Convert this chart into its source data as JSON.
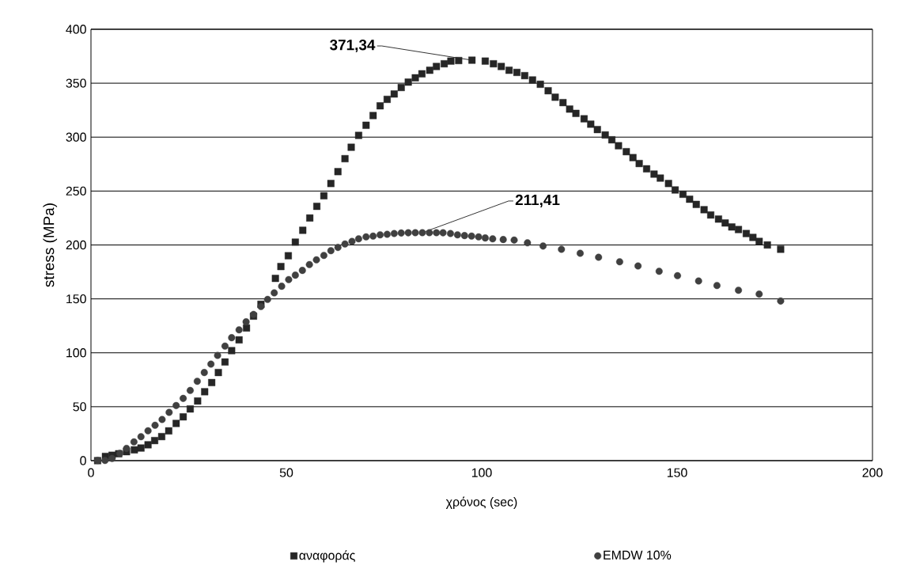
{
  "chart_data": {
    "type": "scatter",
    "xlabel": "χρόνος (sec)",
    "ylabel": "stress (MPa)",
    "xlim": [
      0,
      200
    ],
    "ylim": [
      0,
      400
    ],
    "xticks": [
      0,
      50,
      100,
      150,
      200
    ],
    "yticks": [
      0,
      50,
      100,
      150,
      200,
      250,
      300,
      350,
      400
    ],
    "grid": "y",
    "legend": "bottom",
    "series": [
      {
        "name": "αναφοράς",
        "color": "#262626",
        "marker": "square",
        "x": [
          1.7,
          3.7,
          5.4,
          7.1,
          9.1,
          11.1,
          12.8,
          14.6,
          16.3,
          18.1,
          19.9,
          21.8,
          23.6,
          25.4,
          27.3,
          29.1,
          30.9,
          32.6,
          34.3,
          36,
          37.9,
          39.8,
          41.6,
          43.5,
          47.2,
          48.6,
          50.5,
          52.3,
          54.2,
          56,
          57.8,
          59.6,
          61.4,
          63.2,
          65,
          66.6,
          68.5,
          70.4,
          72.2,
          74,
          75.8,
          77.6,
          79.4,
          81.2,
          83,
          84.7,
          86.7,
          88.4,
          90.4,
          92.1,
          94.1,
          97.5,
          100.9,
          103,
          105,
          107,
          109,
          111,
          113,
          115,
          117,
          118.8,
          120.8,
          122.5,
          124.1,
          126.2,
          127.9,
          129.6,
          131.6,
          133.3,
          135,
          137,
          138.7,
          140.3,
          142.2,
          144.1,
          145.7,
          147.8,
          149.5,
          151.5,
          153.2,
          154.9,
          156.9,
          158.6,
          160.6,
          162.3,
          164,
          165.7,
          167.7,
          169.4,
          171,
          173.1,
          176.5
        ],
        "values": [
          0,
          3.9,
          5,
          6.4,
          8.3,
          10,
          11.7,
          14.7,
          18.6,
          22.3,
          27.6,
          34.5,
          40.6,
          47.9,
          55.3,
          63.9,
          72.4,
          81.7,
          91.5,
          102,
          112,
          123,
          134,
          145,
          169,
          180,
          190,
          202.6,
          213.6,
          225,
          235.8,
          245.6,
          257,
          268,
          280,
          290.6,
          301.6,
          311,
          320,
          329,
          335,
          340,
          346,
          351,
          355,
          358.7,
          362,
          365.5,
          368,
          370.5,
          371,
          371.34,
          370.5,
          368,
          365.5,
          362,
          360,
          357,
          353,
          349,
          343,
          337,
          332,
          326,
          322,
          317,
          312,
          307,
          302,
          297.5,
          292,
          286.5,
          281,
          275.5,
          270.6,
          265.7,
          262,
          257,
          251,
          247,
          242.4,
          237.6,
          232.7,
          227.8,
          224,
          220.4,
          216.7,
          214.3,
          210.6,
          207,
          203.3,
          200,
          196
        ]
      },
      {
        "name": "EMDW 10%",
        "color": "#404040",
        "marker": "circle",
        "x": [
          1.7,
          3.6,
          5.4,
          7.4,
          9.1,
          11,
          12.8,
          14.6,
          16.4,
          18.2,
          20,
          21.8,
          23.6,
          25.4,
          27.2,
          29,
          30.7,
          32.4,
          34.3,
          36,
          37.9,
          39.7,
          41.6,
          43.5,
          45.2,
          46.9,
          48.8,
          50.6,
          52.3,
          54.1,
          55.9,
          57.7,
          59.6,
          61.4,
          63.2,
          65,
          66.8,
          68.5,
          70.4,
          72.2,
          74,
          75.8,
          77.6,
          79.4,
          81.2,
          83,
          84.8,
          86.6,
          88.4,
          90.1,
          92,
          93.8,
          95.6,
          97.4,
          99.2,
          100.9,
          102.8,
          105.5,
          108.3,
          111.7,
          115.7,
          120.4,
          125.2,
          129.9,
          135.3,
          140,
          145.4,
          150.1,
          155.5,
          160.2,
          165.7,
          171,
          176.5
        ],
        "values": [
          0.2,
          0.2,
          2,
          6.8,
          11.3,
          17.4,
          22.2,
          27.7,
          32.8,
          38.2,
          44.8,
          51.1,
          57.7,
          65.1,
          73.6,
          81.7,
          89.5,
          97.6,
          106.2,
          114,
          121.3,
          128.7,
          135.6,
          142.9,
          149.5,
          155.6,
          161.7,
          167.9,
          172,
          176.4,
          181.8,
          186.2,
          190.3,
          194.7,
          197.7,
          200.9,
          203.3,
          205.7,
          207.5,
          208.2,
          209.4,
          209.9,
          210.6,
          211.1,
          211.3,
          211.4,
          211.41,
          211.4,
          211.4,
          211.3,
          210.6,
          209.4,
          208.7,
          208.2,
          207.5,
          206.5,
          205.7,
          205,
          204.5,
          202,
          199,
          196,
          192.3,
          188.6,
          184.4,
          180.5,
          175.6,
          171.5,
          166.6,
          162.4,
          158,
          154.4,
          148
        ]
      }
    ],
    "annotations": [
      {
        "text": "**371,34**",
        "x": 97.5,
        "y": 371.34
      },
      {
        "text": "**211,41**",
        "x": 84.8,
        "y": 211.41
      }
    ]
  }
}
